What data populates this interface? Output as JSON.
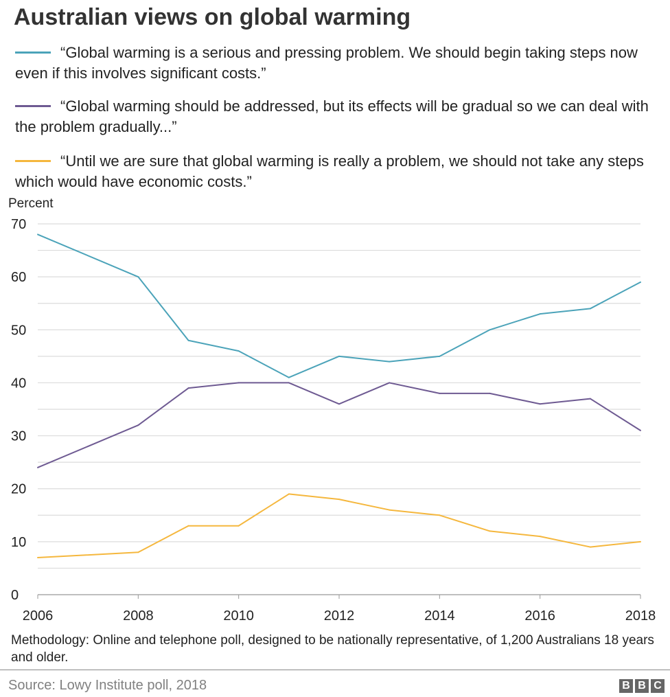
{
  "title": "Australian views on global warming",
  "legend": [
    {
      "text": "“Global warming is a serious and pressing problem. We should begin taking steps now even if this involves significant costs.”",
      "color": "#4ba3b9"
    },
    {
      "text": "“Global warming should be addressed, but its effects will be gradual so we can deal with the problem gradually...”",
      "color": "#6e5a92"
    },
    {
      "text": "“Until we are sure that global warming is really a problem, we should not take any steps which would have economic costs.”",
      "color": "#f5b73d"
    }
  ],
  "methodology": "Methodology: Online and telephone poll, designed to be nationally representative, of 1,200 Australians 18 years and older.",
  "source": "Source: Lowy Institute poll, 2018",
  "logo": [
    "B",
    "B",
    "C"
  ],
  "chart_data": {
    "type": "line",
    "title": "Australian views on global warming",
    "ylabel": "Percent",
    "xlabel": "",
    "x": [
      2006,
      2008,
      2009,
      2010,
      2011,
      2012,
      2013,
      2014,
      2015,
      2016,
      2017,
      2018
    ],
    "xticks": [
      "2006",
      "2008",
      "2010",
      "2012",
      "2014",
      "2016",
      "2018"
    ],
    "yticks": [
      "0",
      "10",
      "20",
      "30",
      "40",
      "50",
      "60",
      "70"
    ],
    "ylim": [
      0,
      70
    ],
    "xlim": [
      2006,
      2018
    ],
    "grid": true,
    "legend_position": "top",
    "series": [
      {
        "name": "“Global warming is a serious and pressing problem...”",
        "color": "#4ba3b9",
        "values": [
          68,
          60,
          48,
          46,
          41,
          45,
          44,
          45,
          50,
          53,
          54,
          59
        ]
      },
      {
        "name": "“Global warming should be addressed, but its effects will be gradual...”",
        "color": "#6e5a92",
        "values": [
          24,
          32,
          39,
          40,
          40,
          36,
          40,
          38,
          38,
          36,
          37,
          31
        ]
      },
      {
        "name": "“Until we are sure that global warming is really a problem...”",
        "color": "#f5b73d",
        "values": [
          7,
          8,
          13,
          13,
          19,
          18,
          16,
          15,
          12,
          11,
          9,
          10
        ]
      }
    ]
  }
}
